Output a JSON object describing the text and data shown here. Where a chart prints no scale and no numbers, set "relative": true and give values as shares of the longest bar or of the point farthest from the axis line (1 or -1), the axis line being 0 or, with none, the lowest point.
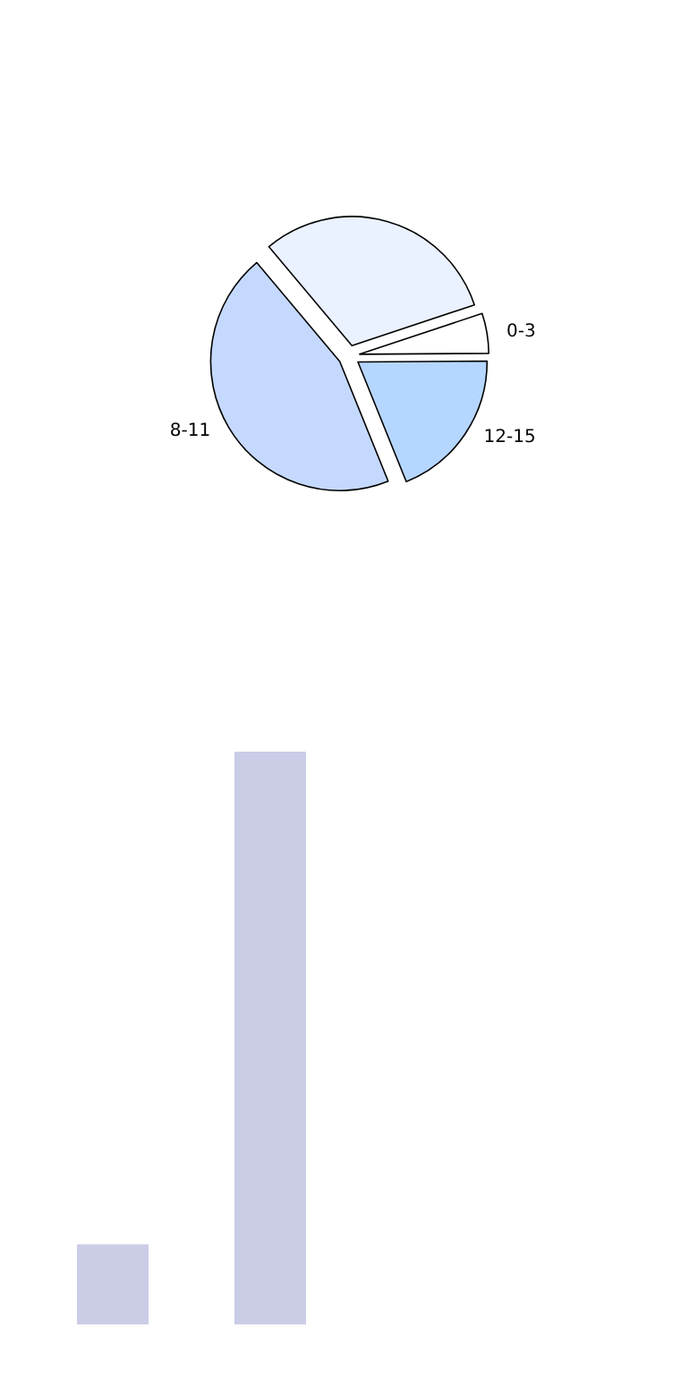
{
  "chart_data": [
    {
      "type": "pie",
      "categories": [
        null,
        "0-3",
        "12-15",
        "8-11"
      ],
      "values": [
        31,
        5,
        19,
        45
      ],
      "colors": [
        "#eaf1ff",
        "#ffffff",
        "#b5d6ff",
        "#c5d9ff"
      ]
    },
    {
      "type": "bar",
      "relative": true,
      "categories": [
        null,
        null
      ],
      "values": [
        0.14,
        1
      ],
      "color": "#cbcce6"
    }
  ]
}
